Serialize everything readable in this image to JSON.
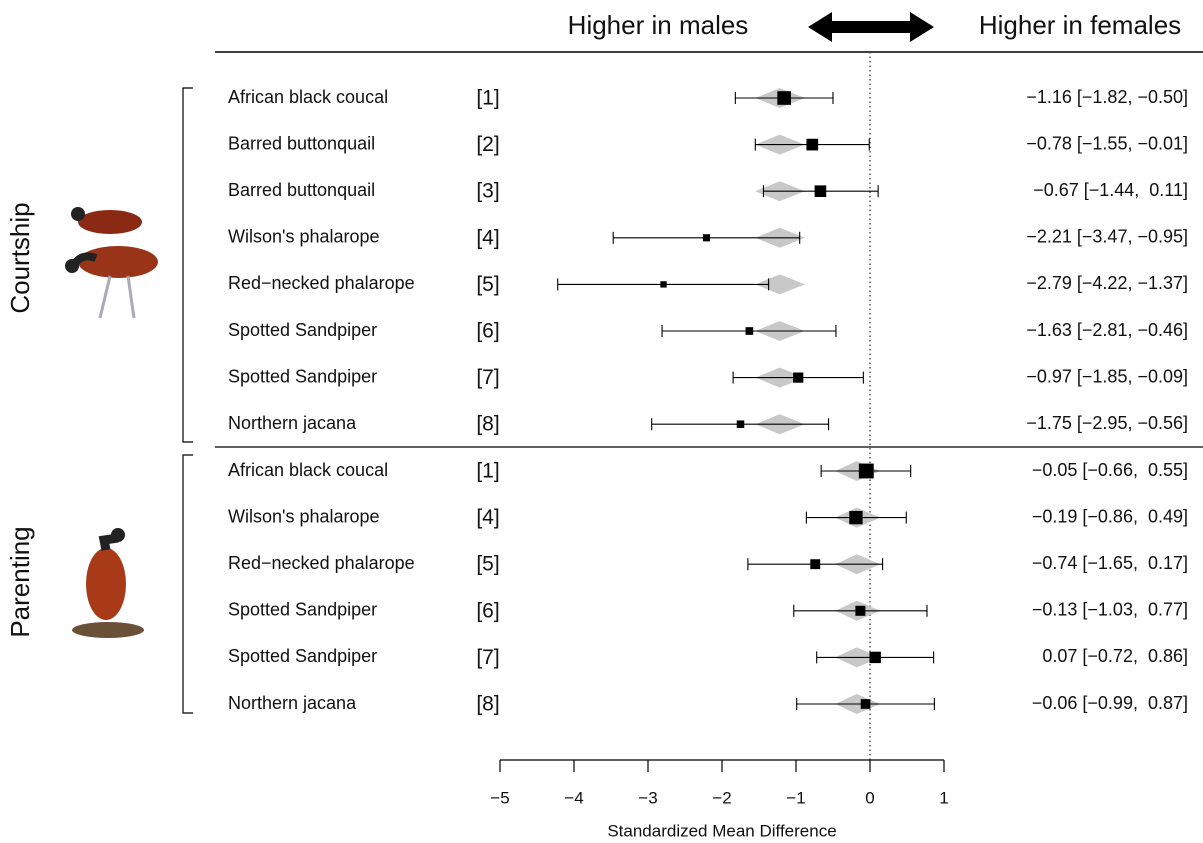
{
  "chart_data": {
    "type": "forest",
    "header_left": "Higher in males",
    "header_right": "Higher in females",
    "xlabel": "Standardized Mean Difference",
    "xlim": [
      -5,
      1
    ],
    "xticks": [
      {
        "value": -5,
        "label": "−5"
      },
      {
        "value": -4,
        "label": "−4"
      },
      {
        "value": -3,
        "label": "−3"
      },
      {
        "value": -2,
        "label": "−2"
      },
      {
        "value": -1,
        "label": "−1"
      },
      0,
      1
    ],
    "reference_line": 0,
    "groups": [
      {
        "name": "Courtship",
        "pooled": {
          "estimate": -1.22,
          "lower": -1.55,
          "upper": -0.88
        },
        "rows": [
          {
            "label": "African black coucal",
            "ref": "[1]",
            "estimate": -1.16,
            "lower": -1.82,
            "upper": -0.5,
            "value_label": "−1.16 [−1.82, −0.50]"
          },
          {
            "label": "Barred buttonquail",
            "ref": "[2]",
            "estimate": -0.78,
            "lower": -1.55,
            "upper": -0.01,
            "value_label": "−0.78 [−1.55, −0.01]"
          },
          {
            "label": "Barred buttonquail",
            "ref": "[3]",
            "estimate": -0.67,
            "lower": -1.44,
            "upper": 0.11,
            "value_label": "−0.67 [−1.44,  0.11]"
          },
          {
            "label": "Wilson's phalarope",
            "ref": "[4]",
            "estimate": -2.21,
            "lower": -3.47,
            "upper": -0.95,
            "value_label": "−2.21 [−3.47, −0.95]"
          },
          {
            "label": "Red−necked phalarope",
            "ref": "[5]",
            "estimate": -2.79,
            "lower": -4.22,
            "upper": -1.37,
            "value_label": "−2.79 [−4.22, −1.37]"
          },
          {
            "label": "Spotted Sandpiper",
            "ref": "[6]",
            "estimate": -1.63,
            "lower": -2.81,
            "upper": -0.46,
            "value_label": "−1.63 [−2.81, −0.46]"
          },
          {
            "label": "Spotted Sandpiper",
            "ref": "[7]",
            "estimate": -0.97,
            "lower": -1.85,
            "upper": -0.09,
            "value_label": "−0.97 [−1.85, −0.09]"
          },
          {
            "label": "Northern jacana",
            "ref": "[8]",
            "estimate": -1.75,
            "lower": -2.95,
            "upper": -0.56,
            "value_label": "−1.75 [−2.95, −0.56]"
          }
        ]
      },
      {
        "name": "Parenting",
        "pooled": {
          "estimate": -0.18,
          "lower": -0.47,
          "upper": 0.14
        },
        "rows": [
          {
            "label": "African black coucal",
            "ref": "[1]",
            "estimate": -0.05,
            "lower": -0.66,
            "upper": 0.55,
            "value_label": "−0.05 [−0.66,  0.55]"
          },
          {
            "label": "Wilson's phalarope",
            "ref": "[4]",
            "estimate": -0.19,
            "lower": -0.86,
            "upper": 0.49,
            "value_label": "−0.19 [−0.86,  0.49]"
          },
          {
            "label": "Red−necked phalarope",
            "ref": "[5]",
            "estimate": -0.74,
            "lower": -1.65,
            "upper": 0.17,
            "value_label": "−0.74 [−1.65,  0.17]"
          },
          {
            "label": "Spotted Sandpiper",
            "ref": "[6]",
            "estimate": -0.13,
            "lower": -1.03,
            "upper": 0.77,
            "value_label": "−0.13 [−1.03,  0.77]"
          },
          {
            "label": "Spotted Sandpiper",
            "ref": "[7]",
            "estimate": 0.07,
            "lower": -0.72,
            "upper": 0.86,
            "value_label": "0.07 [−0.72,  0.86]"
          },
          {
            "label": "Northern jacana",
            "ref": "[8]",
            "estimate": -0.06,
            "lower": -0.99,
            "upper": 0.87,
            "value_label": "−0.06 [−0.99,  0.87]"
          }
        ]
      }
    ]
  }
}
